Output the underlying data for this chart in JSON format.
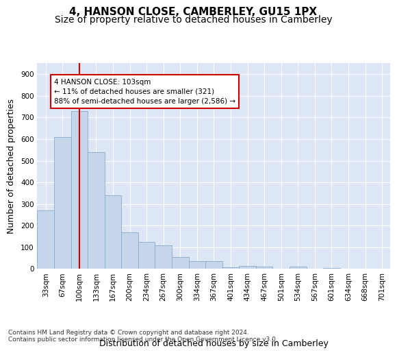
{
  "title_line1": "4, HANSON CLOSE, CAMBERLEY, GU15 1PX",
  "title_line2": "Size of property relative to detached houses in Camberley",
  "xlabel": "Distribution of detached houses by size in Camberley",
  "ylabel": "Number of detached properties",
  "background_color": "#dde6f5",
  "bar_color": "#c5d5ea",
  "bar_edge_color": "#8aabcc",
  "annotation_text": "4 HANSON CLOSE: 103sqm\n← 11% of detached houses are smaller (321)\n88% of semi-detached houses are larger (2,586) →",
  "vline_color": "#cc0000",
  "categories": [
    "33sqm",
    "67sqm",
    "100sqm",
    "133sqm",
    "167sqm",
    "200sqm",
    "234sqm",
    "267sqm",
    "300sqm",
    "334sqm",
    "367sqm",
    "401sqm",
    "434sqm",
    "467sqm",
    "501sqm",
    "534sqm",
    "567sqm",
    "601sqm",
    "634sqm",
    "668sqm",
    "701sqm"
  ],
  "values": [
    270,
    610,
    730,
    540,
    340,
    170,
    125,
    110,
    55,
    35,
    35,
    7,
    15,
    10,
    0,
    10,
    0,
    5,
    0,
    0,
    0
  ],
  "ylim": [
    0,
    950
  ],
  "yticks": [
    0,
    100,
    200,
    300,
    400,
    500,
    600,
    700,
    800,
    900
  ],
  "footnote": "Contains HM Land Registry data © Crown copyright and database right 2024.\nContains public sector information licensed under the Open Government Licence v3.0.",
  "title_fontsize": 11,
  "subtitle_fontsize": 10,
  "axis_label_fontsize": 9,
  "tick_fontsize": 7.5,
  "footnote_fontsize": 6.5
}
